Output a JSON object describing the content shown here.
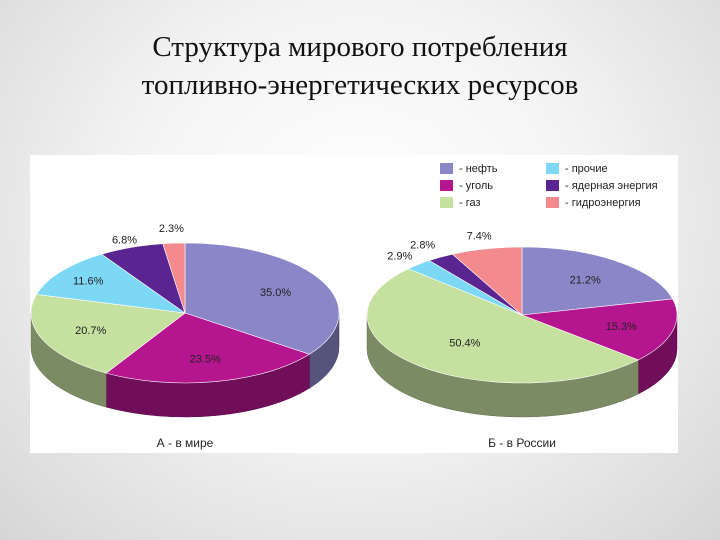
{
  "page": {
    "title_line1": "Структура мирового потребления",
    "title_line2": "топливно-энергетических ресурсов"
  },
  "legend": [
    {
      "label": "- нефть",
      "color": "#8b86c8"
    },
    {
      "label": "- уголь",
      "color": "#b5168f"
    },
    {
      "label": "- газ",
      "color": "#c6e0a0"
    },
    {
      "label": "- прочие",
      "color": "#7dd8f5"
    },
    {
      "label": "- ядерная энергия",
      "color": "#5a2590"
    },
    {
      "label": "- гидроэнергия",
      "color": "#f28a8e"
    }
  ],
  "chart_data": [
    {
      "type": "pie",
      "title": "А - в мире",
      "slices": [
        {
          "category": "нефть",
          "value": 35.0,
          "label": "35.0%"
        },
        {
          "category": "уголь",
          "value": 23.5,
          "label": "23.5%"
        },
        {
          "category": "газ",
          "value": 20.7,
          "label": "20.7%"
        },
        {
          "category": "прочие",
          "value": 11.6,
          "label": "11.6%"
        },
        {
          "category": "ядерная энергия",
          "value": 6.8,
          "label": "6.8%"
        },
        {
          "category": "гидроэнергия",
          "value": 2.3,
          "label": "2.3%"
        }
      ]
    },
    {
      "type": "pie",
      "title": "Б - в России",
      "slices": [
        {
          "category": "нефть",
          "value": 21.2,
          "label": "21.2%"
        },
        {
          "category": "уголь",
          "value": 15.3,
          "label": "15.3%"
        },
        {
          "category": "газ",
          "value": 50.4,
          "label": "50.4%"
        },
        {
          "category": "прочие",
          "value": 2.9,
          "label": "2.9%"
        },
        {
          "category": "ядерная энергия",
          "value": 2.8,
          "label": "2.8%"
        },
        {
          "category": "гидроэнергия",
          "value": 7.4,
          "label": "7.4%"
        }
      ]
    }
  ]
}
